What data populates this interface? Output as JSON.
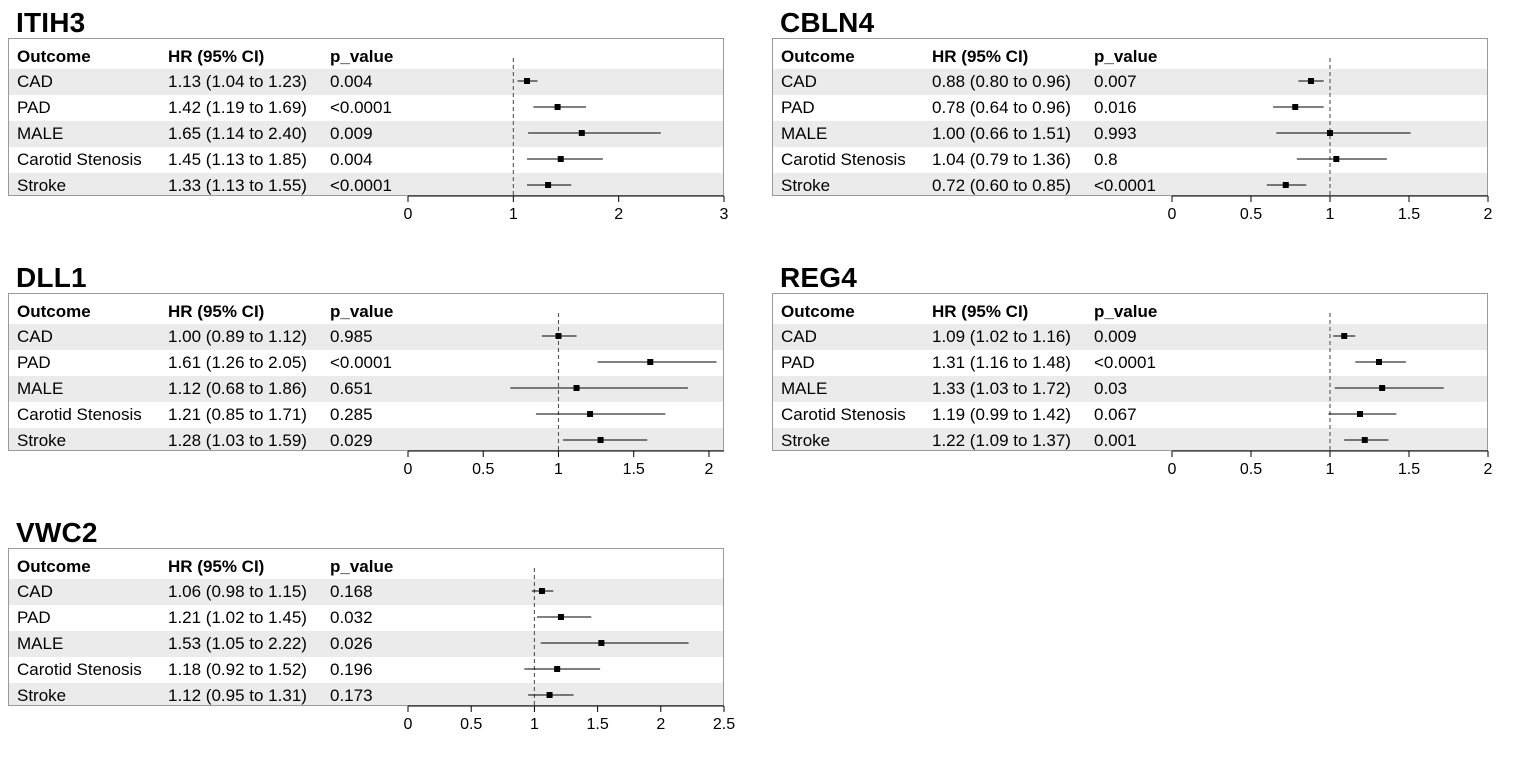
{
  "columns": {
    "outcome": "Outcome",
    "hr": "HR (95% CI)",
    "p": "p_value"
  },
  "chart_data": [
    {
      "type": "forest",
      "title": "ITIH3",
      "xlim": [
        0,
        3
      ],
      "xticks": [
        0,
        1,
        2,
        3
      ],
      "tick_labels": [
        "0",
        "1",
        "2",
        "3"
      ],
      "reference_line": 1,
      "rows": [
        {
          "outcome": "CAD",
          "hr_text": "1.13 (1.04 to 1.23)",
          "p": "0.004",
          "hr": 1.13,
          "lo": 1.04,
          "hi": 1.23
        },
        {
          "outcome": "PAD",
          "hr_text": "1.42 (1.19 to 1.69)",
          "p": "<0.0001",
          "hr": 1.42,
          "lo": 1.19,
          "hi": 1.69
        },
        {
          "outcome": "MALE",
          "hr_text": "1.65 (1.14 to 2.40)",
          "p": "0.009",
          "hr": 1.65,
          "lo": 1.14,
          "hi": 2.4
        },
        {
          "outcome": "Carotid Stenosis",
          "hr_text": "1.45 (1.13 to 1.85)",
          "p": "0.004",
          "hr": 1.45,
          "lo": 1.13,
          "hi": 1.85
        },
        {
          "outcome": "Stroke",
          "hr_text": "1.33 (1.13 to 1.55)",
          "p": "<0.0001",
          "hr": 1.33,
          "lo": 1.13,
          "hi": 1.55
        }
      ]
    },
    {
      "type": "forest",
      "title": "CBLN4",
      "xlim": [
        0,
        2
      ],
      "xticks": [
        0,
        0.5,
        1,
        1.5,
        2
      ],
      "tick_labels": [
        "0",
        "0.5",
        "1",
        "1.5",
        "2"
      ],
      "reference_line": 1,
      "rows": [
        {
          "outcome": "CAD",
          "hr_text": "0.88 (0.80 to 0.96)",
          "p": "0.007",
          "hr": 0.88,
          "lo": 0.8,
          "hi": 0.96
        },
        {
          "outcome": "PAD",
          "hr_text": "0.78 (0.64 to 0.96)",
          "p": "0.016",
          "hr": 0.78,
          "lo": 0.64,
          "hi": 0.96
        },
        {
          "outcome": "MALE",
          "hr_text": "1.00 (0.66 to 1.51)",
          "p": "0.993",
          "hr": 1.0,
          "lo": 0.66,
          "hi": 1.51
        },
        {
          "outcome": "Carotid Stenosis",
          "hr_text": "1.04 (0.79 to 1.36)",
          "p": "0.8",
          "hr": 1.04,
          "lo": 0.79,
          "hi": 1.36
        },
        {
          "outcome": "Stroke",
          "hr_text": "0.72 (0.60 to 0.85)",
          "p": "<0.0001",
          "hr": 0.72,
          "lo": 0.6,
          "hi": 0.85
        }
      ]
    },
    {
      "type": "forest",
      "title": "DLL1",
      "xlim": [
        0,
        2.1
      ],
      "xticks": [
        0,
        0.5,
        1,
        1.5,
        2
      ],
      "tick_labels": [
        "0",
        "0.5",
        "1",
        "1.5",
        "2"
      ],
      "reference_line": 1,
      "rows": [
        {
          "outcome": "CAD",
          "hr_text": "1.00 (0.89 to 1.12)",
          "p": "0.985",
          "hr": 1.0,
          "lo": 0.89,
          "hi": 1.12
        },
        {
          "outcome": "PAD",
          "hr_text": "1.61 (1.26 to 2.05)",
          "p": "<0.0001",
          "hr": 1.61,
          "lo": 1.26,
          "hi": 2.05
        },
        {
          "outcome": "MALE",
          "hr_text": "1.12 (0.68 to 1.86)",
          "p": "0.651",
          "hr": 1.12,
          "lo": 0.68,
          "hi": 1.86
        },
        {
          "outcome": "Carotid Stenosis",
          "hr_text": "1.21 (0.85 to 1.71)",
          "p": "0.285",
          "hr": 1.21,
          "lo": 0.85,
          "hi": 1.71
        },
        {
          "outcome": "Stroke",
          "hr_text": "1.28 (1.03 to 1.59)",
          "p": "0.029",
          "hr": 1.28,
          "lo": 1.03,
          "hi": 1.59
        }
      ]
    },
    {
      "type": "forest",
      "title": "REG4",
      "xlim": [
        0,
        2
      ],
      "xticks": [
        0,
        0.5,
        1,
        1.5,
        2
      ],
      "tick_labels": [
        "0",
        "0.5",
        "1",
        "1.5",
        "2"
      ],
      "reference_line": 1,
      "rows": [
        {
          "outcome": "CAD",
          "hr_text": "1.09 (1.02 to 1.16)",
          "p": "0.009",
          "hr": 1.09,
          "lo": 1.02,
          "hi": 1.16
        },
        {
          "outcome": "PAD",
          "hr_text": "1.31 (1.16 to 1.48)",
          "p": "<0.0001",
          "hr": 1.31,
          "lo": 1.16,
          "hi": 1.48
        },
        {
          "outcome": "MALE",
          "hr_text": "1.33 (1.03 to 1.72)",
          "p": "0.03",
          "hr": 1.33,
          "lo": 1.03,
          "hi": 1.72
        },
        {
          "outcome": "Carotid Stenosis",
          "hr_text": "1.19 (0.99 to 1.42)",
          "p": "0.067",
          "hr": 1.19,
          "lo": 0.99,
          "hi": 1.42
        },
        {
          "outcome": "Stroke",
          "hr_text": "1.22 (1.09 to 1.37)",
          "p": "0.001",
          "hr": 1.22,
          "lo": 1.09,
          "hi": 1.37
        }
      ]
    },
    {
      "type": "forest",
      "title": "VWC2",
      "xlim": [
        0,
        2.5
      ],
      "xticks": [
        0,
        0.5,
        1,
        1.5,
        2,
        2.5
      ],
      "tick_labels": [
        "0",
        "0.5",
        "1",
        "1.5",
        "2",
        "2.5"
      ],
      "reference_line": 1,
      "rows": [
        {
          "outcome": "CAD",
          "hr_text": "1.06 (0.98 to 1.15)",
          "p": "0.168",
          "hr": 1.06,
          "lo": 0.98,
          "hi": 1.15
        },
        {
          "outcome": "PAD",
          "hr_text": "1.21 (1.02 to 1.45)",
          "p": "0.032",
          "hr": 1.21,
          "lo": 1.02,
          "hi": 1.45
        },
        {
          "outcome": "MALE",
          "hr_text": "1.53 (1.05 to 2.22)",
          "p": "0.026",
          "hr": 1.53,
          "lo": 1.05,
          "hi": 2.22
        },
        {
          "outcome": "Carotid Stenosis",
          "hr_text": "1.18 (0.92 to 1.52)",
          "p": "0.196",
          "hr": 1.18,
          "lo": 0.92,
          "hi": 1.52
        },
        {
          "outcome": "Stroke",
          "hr_text": "1.12 (0.95 to 1.31)",
          "p": "0.173",
          "hr": 1.12,
          "lo": 0.95,
          "hi": 1.31
        }
      ]
    }
  ]
}
